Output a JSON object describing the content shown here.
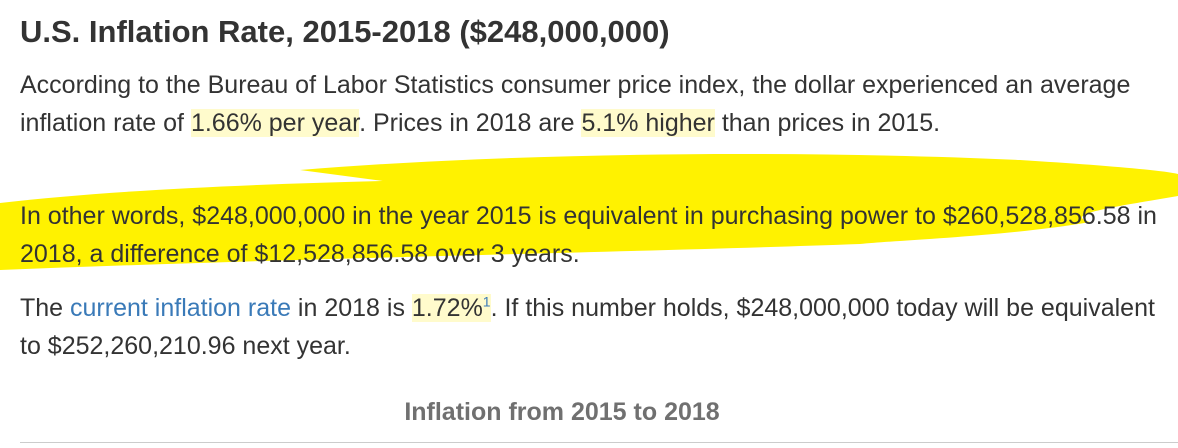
{
  "title": "U.S. Inflation Rate, 2015-2018 ($248,000,000)",
  "paragraph1": {
    "t1": "According to the Bureau of Labor Statistics consumer price index, the dollar experienced an average inflation rate of ",
    "avg_rate": "1.66% per year",
    "t2": ". Prices in 2018 are ",
    "higher": "5.1% higher",
    "t3": " than prices in 2015."
  },
  "paragraph2": {
    "text": "In other words, $248,000,000 in the year 2015 is equivalent in purchasing power to $260,528,856.58 in 2018, a difference of $12,528,856.58 over 3 years."
  },
  "paragraph3": {
    "t1": "The ",
    "link": "current inflation rate",
    "t2": " in 2018 is ",
    "rate": "1.72%",
    "footnote": "1",
    "t3": ". If this number holds, $248,000,000 today will be equivalent to $252,260,210.96 next year."
  },
  "subheading": "Inflation from 2015 to 2018",
  "colors": {
    "text": "#333333",
    "link": "#3a7ab8",
    "highlight": "#fffbcc",
    "marker": "#fff200",
    "subheading": "#707070"
  }
}
